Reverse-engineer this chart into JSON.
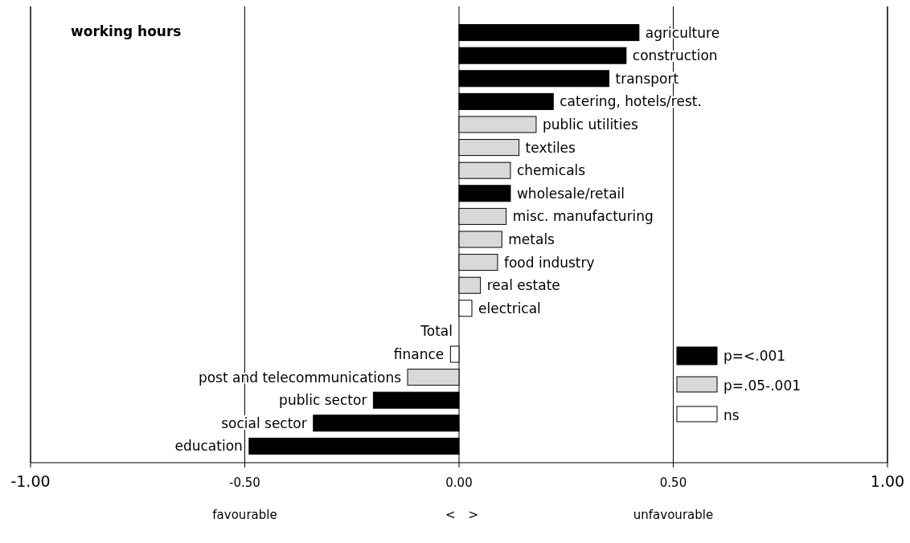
{
  "chart_data": {
    "type": "bar",
    "orientation": "horizontal",
    "stacked": true,
    "title": "working hours",
    "categories": [
      "agriculture",
      "construction",
      "transport",
      "catering, hotels/rest.",
      "public utilities",
      "textiles",
      "chemicals",
      "wholesale/retail",
      "misc. manufacturing",
      "metals",
      "food industry",
      "real estate",
      "electrical",
      "Total",
      "finance",
      "post and telecommunications",
      "public sector",
      "social sector",
      "education"
    ],
    "series": [
      {
        "name": "p=<.001",
        "color": "#000000",
        "values": [
          0.42,
          0.39,
          0.35,
          0.22,
          null,
          null,
          null,
          0.12,
          null,
          null,
          null,
          null,
          null,
          null,
          null,
          null,
          -0.2,
          -0.34,
          -0.49
        ]
      },
      {
        "name": "p=.05-.001",
        "color": "#d9d9d9",
        "values": [
          null,
          null,
          null,
          null,
          0.18,
          0.14,
          0.12,
          null,
          0.11,
          0.1,
          0.09,
          0.05,
          null,
          null,
          null,
          -0.12,
          null,
          null,
          null
        ]
      },
      {
        "name": "ns",
        "color": "#ffffff",
        "values": [
          null,
          null,
          null,
          null,
          null,
          null,
          null,
          null,
          null,
          null,
          null,
          null,
          0.03,
          0,
          -0.02,
          null,
          null,
          null,
          null
        ]
      }
    ],
    "xlim": [
      -1,
      1
    ],
    "xticks": [
      {
        "value": -1,
        "label": "-1.00"
      },
      {
        "value": -0.5,
        "label": "-0.50"
      },
      {
        "value": 0,
        "label": "0.00"
      },
      {
        "value": 0.5,
        "label": "0.50"
      },
      {
        "value": 1,
        "label": "1.00"
      }
    ],
    "grid": "x",
    "legend": "bottom right",
    "annotations": [
      "favourable",
      "<",
      "   >",
      "unfavourable"
    ]
  }
}
